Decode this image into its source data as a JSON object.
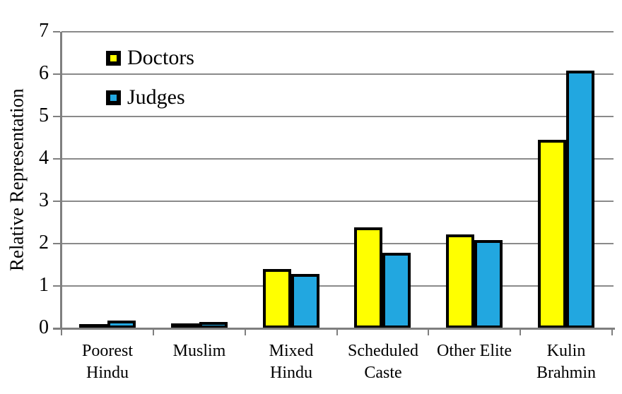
{
  "chart_data": {
    "type": "bar",
    "title": "",
    "xlabel": "",
    "ylabel": "Relative Representation",
    "ylim": [
      0,
      7
    ],
    "yticks": [
      0,
      1,
      2,
      3,
      4,
      5,
      6,
      7
    ],
    "grid": true,
    "legend_position": "top-left-inside",
    "categories": [
      "Poorest\nHindu",
      "Muslim",
      "Mixed\nHindu",
      "Scheduled\nCaste",
      "Other Elite",
      "Kulin\nBrahmin"
    ],
    "series": [
      {
        "name": "Doctors",
        "color": "#FFFF00",
        "values": [
          0.08,
          0.12,
          1.4,
          2.38,
          2.22,
          4.45
        ]
      },
      {
        "name": "Judges",
        "color": "#22A7E0",
        "values": [
          0.18,
          0.15,
          1.28,
          1.78,
          2.08,
          6.08
        ]
      }
    ],
    "colors": {
      "bar_border": "#000000",
      "gridline": "#8a8a8a",
      "axis": "#7f7f7f",
      "text": "#000000",
      "background": "#ffffff"
    }
  }
}
